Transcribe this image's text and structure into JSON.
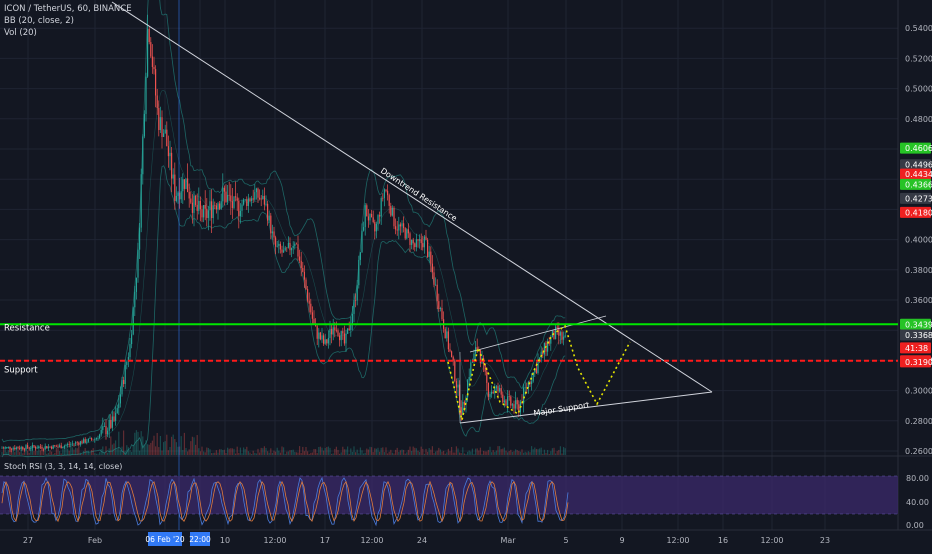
{
  "legend": {
    "symbol": "ICON / TetherUS, 60, BINANCE",
    "bb": "BB (20, close, 2)",
    "vol": "Vol (20)"
  },
  "rsi_legend": "Stoch RSI (3, 3, 14, 14, close)",
  "colors": {
    "background": "#131722",
    "grid": "#1f2433",
    "up": "#26a69a",
    "down": "#ef5350",
    "resistance": "#00e600",
    "support": "#ff1a1a",
    "projection": "#e6e600",
    "rsi_band": "#3b2a6b",
    "crosshair": "#3179f5"
  },
  "annotations": {
    "downtrend": "Downtrend Resistance",
    "major_support": "Major Support",
    "resistance": "Resistance",
    "support": "Support"
  },
  "chart_data": {
    "type": "candlestick",
    "y_axis": {
      "ticks": [
        "0.5400",
        "0.5200",
        "0.5000",
        "0.4800",
        "0.4606",
        "0.4496",
        "0.4434",
        "0.4366",
        "0.4273",
        "0.4180",
        "0.4000",
        "0.3800",
        "0.3600",
        "0.3439",
        "0.3368",
        "41:38",
        "0.3198",
        "0.3190",
        "0.3000",
        "0.2800",
        "0.2600"
      ],
      "range": [
        0.26,
        0.54
      ]
    },
    "x_axis": {
      "ticks": [
        "27",
        "Feb",
        "06 Feb '20",
        "22:00",
        "10",
        "12:00",
        "17",
        "12:00",
        "24",
        "Mar",
        "5",
        "9",
        "12:00",
        "16",
        "12:00",
        "23"
      ]
    },
    "price_labels": [
      {
        "text": "0.4606",
        "value": 0.4606,
        "color": "#26c326"
      },
      {
        "text": "0.4496",
        "value": 0.4496,
        "color": "#363a45"
      },
      {
        "text": "0.4434",
        "value": 0.4434,
        "color": "#ef2020"
      },
      {
        "text": "0.4366",
        "value": 0.4366,
        "color": "#26c326"
      },
      {
        "text": "0.4273",
        "value": 0.4273,
        "color": "#363a45"
      },
      {
        "text": "0.4180",
        "value": 0.418,
        "color": "#ef2020"
      },
      {
        "text": "0.3439",
        "value": 0.3439,
        "color": "#26c326"
      },
      {
        "text": "0.3368",
        "value": 0.3368,
        "color": "#363a45"
      },
      {
        "text": "41:38",
        "value": 0.3283,
        "color": "#ef2020"
      },
      {
        "text": "0.3198",
        "value": 0.3198,
        "color": "#ef2020"
      },
      {
        "text": "0.3190",
        "value": 0.319,
        "color": "#ef2020"
      }
    ],
    "resistance_level": 0.3439,
    "support_level": 0.3198,
    "rsi_ticks": [
      "80.00",
      "40.00",
      "0.00"
    ]
  }
}
